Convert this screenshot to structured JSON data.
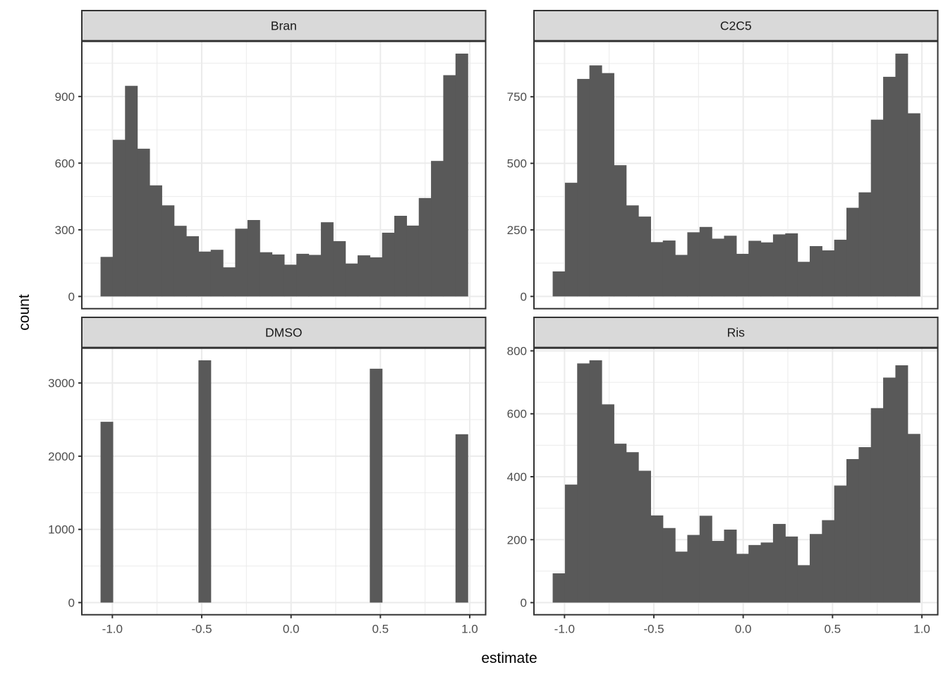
{
  "figure": {
    "xlabel": "estimate",
    "ylabel": "count"
  },
  "colors": {
    "bar_fill": "#595959",
    "panel_border": "#333333",
    "panel_bg": "#ffffff",
    "strip_bg": "#d9d9d9",
    "strip_text": "#1a1a1a",
    "grid_major": "#ebebeb",
    "grid_minor": "#ebebeb",
    "tick_mark": "#333333",
    "axis_text": "#4d4d4d"
  },
  "chart_data": {
    "type": "bar",
    "subtype": "faceted-histogram",
    "title": "",
    "xlabel": "estimate",
    "ylabel": "count",
    "grid": "on",
    "x": {
      "bin_start": -1.065,
      "bin_width": 0.0685,
      "n_bins": 30,
      "domain": [
        -1.171,
        1.089
      ],
      "ticks": [
        -1.0,
        -0.5,
        0.0,
        0.5,
        1.0
      ],
      "tick_labels": [
        "-1.0",
        "-0.5",
        "0.0",
        "0.5",
        "1.0"
      ],
      "minor": [
        -0.75,
        -0.25,
        0.25,
        0.75
      ]
    },
    "facets": [
      {
        "label": "Bran",
        "y_domain": [
          -55,
          1148
        ],
        "y_ticks": [
          0,
          300,
          600,
          900
        ],
        "y_tick_labels": [
          "0",
          "300",
          "600",
          "900"
        ],
        "y_minor": [
          150,
          450,
          750,
          1050
        ],
        "counts": [
          178,
          705,
          948,
          665,
          500,
          410,
          318,
          271,
          202,
          210,
          131,
          305,
          344,
          199,
          189,
          143,
          192,
          187,
          334,
          249,
          148,
          185,
          176,
          287,
          363,
          319,
          443,
          610,
          996,
          1093
        ]
      },
      {
        "label": "C2C5",
        "y_domain": [
          -46,
          958
        ],
        "y_ticks": [
          0,
          250,
          500,
          750
        ],
        "y_tick_labels": [
          "0",
          "250",
          "500",
          "750"
        ],
        "y_minor": [
          125,
          375,
          625,
          875
        ],
        "counts": [
          94,
          427,
          817,
          868,
          839,
          493,
          342,
          300,
          204,
          210,
          156,
          241,
          261,
          217,
          228,
          160,
          209,
          203,
          233,
          237,
          130,
          189,
          173,
          213,
          333,
          391,
          664,
          825,
          912,
          688
        ]
      },
      {
        "label": "DMSO",
        "y_domain": [
          -166,
          3476
        ],
        "y_ticks": [
          0,
          1000,
          2000,
          3000
        ],
        "y_tick_labels": [
          "0",
          "1000",
          "2000",
          "3000"
        ],
        "y_minor": [
          500,
          1500,
          2500,
          3500
        ],
        "counts": [
          2470,
          0,
          0,
          0,
          0,
          0,
          0,
          0,
          3310,
          0,
          0,
          0,
          0,
          0,
          0,
          0,
          0,
          0,
          0,
          0,
          0,
          0,
          3195,
          0,
          0,
          0,
          0,
          0,
          0,
          2300
        ]
      },
      {
        "label": "Ris",
        "y_domain": [
          -38.5,
          808.5
        ],
        "y_ticks": [
          0,
          200,
          400,
          600,
          800
        ],
        "y_tick_labels": [
          "0",
          "200",
          "400",
          "600",
          "800"
        ],
        "y_minor": [
          100,
          300,
          500,
          700
        ],
        "counts": [
          93,
          375,
          760,
          770,
          630,
          505,
          478,
          419,
          277,
          237,
          162,
          215,
          276,
          196,
          232,
          155,
          183,
          191,
          250,
          210,
          119,
          218,
          262,
          372,
          456,
          494,
          618,
          715,
          754,
          536
        ]
      }
    ]
  }
}
